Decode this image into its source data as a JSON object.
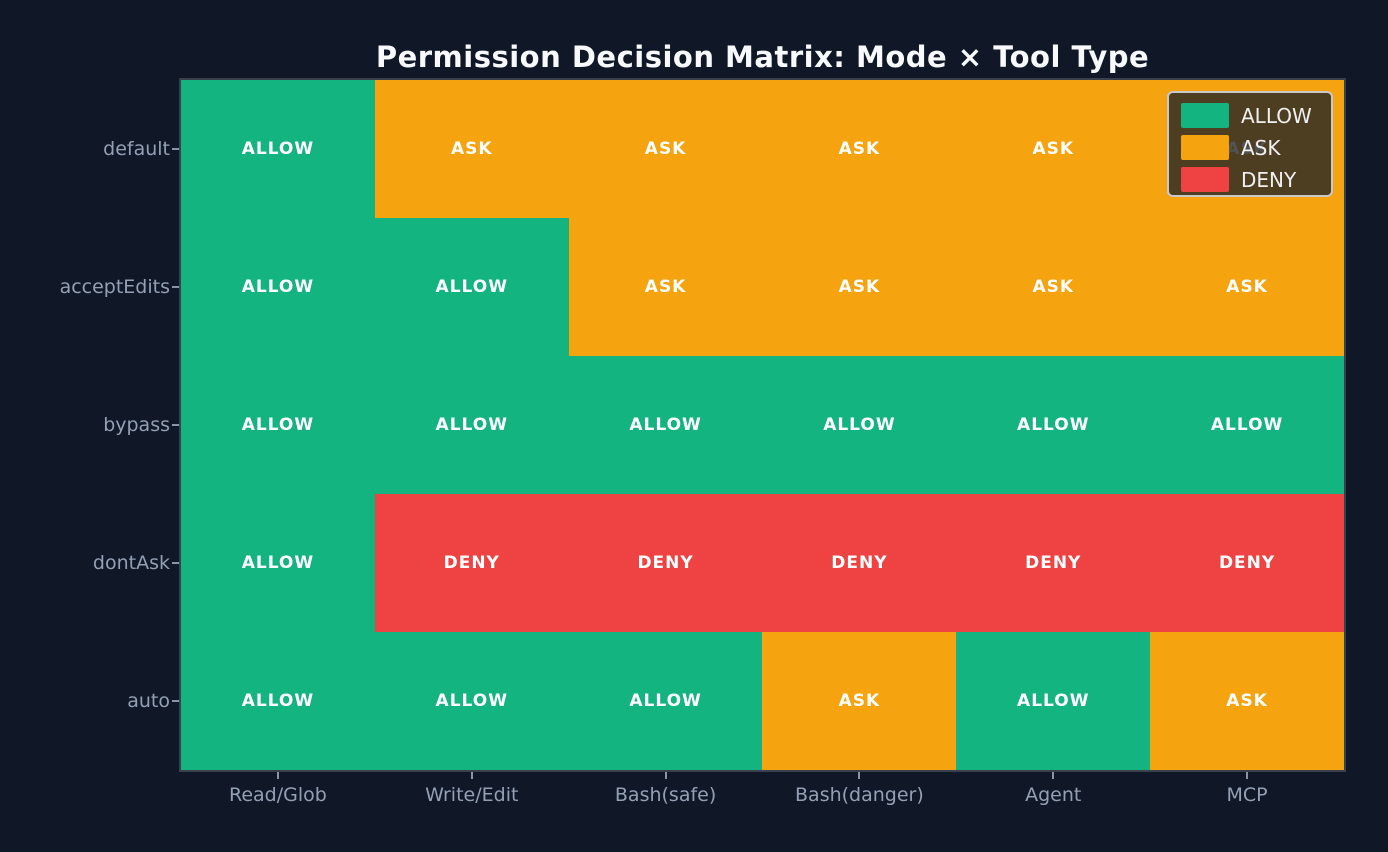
{
  "chart_data": {
    "type": "heatmap",
    "title": "Permission Decision Matrix: Mode × Tool Type",
    "xlabel": "",
    "ylabel": "",
    "x_categories": [
      "Read/Glob",
      "Write/Edit",
      "Bash(safe)",
      "Bash(danger)",
      "Agent",
      "MCP"
    ],
    "y_categories": [
      "default",
      "acceptEdits",
      "bypass",
      "dontAsk",
      "auto"
    ],
    "matrix": [
      [
        "ALLOW",
        "ASK",
        "ASK",
        "ASK",
        "ASK",
        "ASK"
      ],
      [
        "ALLOW",
        "ALLOW",
        "ASK",
        "ASK",
        "ASK",
        "ASK"
      ],
      [
        "ALLOW",
        "ALLOW",
        "ALLOW",
        "ALLOW",
        "ALLOW",
        "ALLOW"
      ],
      [
        "ALLOW",
        "DENY",
        "DENY",
        "DENY",
        "DENY",
        "DENY"
      ],
      [
        "ALLOW",
        "ALLOW",
        "ALLOW",
        "ASK",
        "ALLOW",
        "ASK"
      ]
    ],
    "value_colors": {
      "ALLOW": "#14b480",
      "ASK": "#f5a30e",
      "DENY": "#ee4342"
    },
    "legend": {
      "position": "upper right",
      "entries": [
        {
          "label": "ALLOW",
          "color": "#14b480"
        },
        {
          "label": "ASK",
          "color": "#f5a30e"
        },
        {
          "label": "DENY",
          "color": "#ee4342"
        }
      ]
    },
    "grid": false
  },
  "theme": {
    "background": "#101827",
    "plot_border": "#3a414d",
    "title_color": "#f7f9fc",
    "tick_label_color": "#93a0b4",
    "cell_text_color": "#ffffff",
    "legend_bg": "rgba(30,33,38,0.78)",
    "legend_border": "#c9c9c9",
    "legend_text": "#f0f0f0"
  }
}
